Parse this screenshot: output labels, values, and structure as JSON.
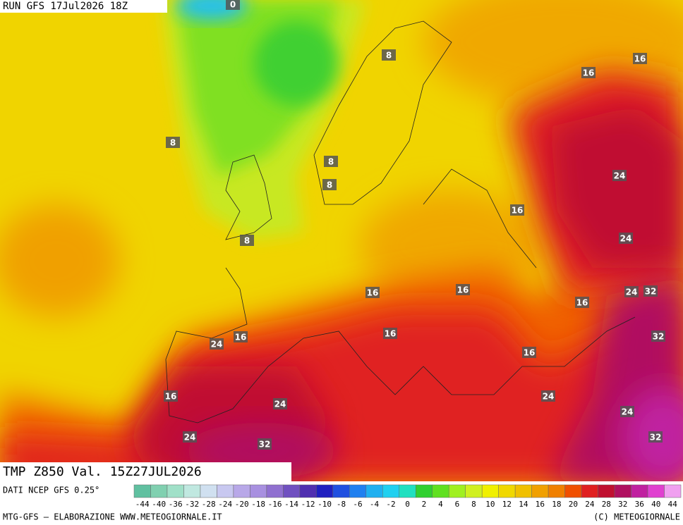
{
  "header": {
    "run": "RUN GFS 17Jul2026 18Z",
    "field": "TMP Z850 Val. 15Z27JUL2026"
  },
  "contour_labels": [
    0,
    8,
    16,
    16,
    8,
    8,
    24,
    8,
    16,
    24,
    8,
    16,
    16,
    24,
    32,
    16,
    16,
    24,
    16,
    32,
    16,
    16,
    24,
    24,
    24,
    24,
    32,
    32
  ],
  "colorbar": {
    "ticks": [
      -44,
      -40,
      -36,
      -32,
      -28,
      -24,
      -20,
      -18,
      -16,
      -14,
      -12,
      -10,
      -8,
      -6,
      -4,
      -2,
      0,
      2,
      4,
      6,
      8,
      10,
      12,
      14,
      16,
      18,
      20,
      24,
      28,
      32,
      36,
      40,
      44
    ],
    "colors": [
      "#60c0a0",
      "#80d0b0",
      "#a0e0c8",
      "#c0e8e0",
      "#d0e0f0",
      "#c8c8f0",
      "#b8a8e8",
      "#a890e0",
      "#9070d0",
      "#7050c0",
      "#5030b0",
      "#2020c0",
      "#2050e0",
      "#2080f0",
      "#20b0f0",
      "#20d0f0",
      "#20e0c0",
      "#30d030",
      "#60e020",
      "#a0f020",
      "#d0f020",
      "#f0f000",
      "#f0d800",
      "#f0c000",
      "#f0a000",
      "#f08000",
      "#f05000",
      "#e02020",
      "#c01030",
      "#b01060",
      "#c020a0",
      "#e040d0",
      "#f0a0f0"
    ]
  },
  "footer": {
    "source": "DATI NCEP GFS 0.25°",
    "credit_left": "MTG-GFS — ELABORAZIONE WWW.METEOGIORNALE.IT",
    "credit_right": "(C) METEOGIORNALE"
  }
}
